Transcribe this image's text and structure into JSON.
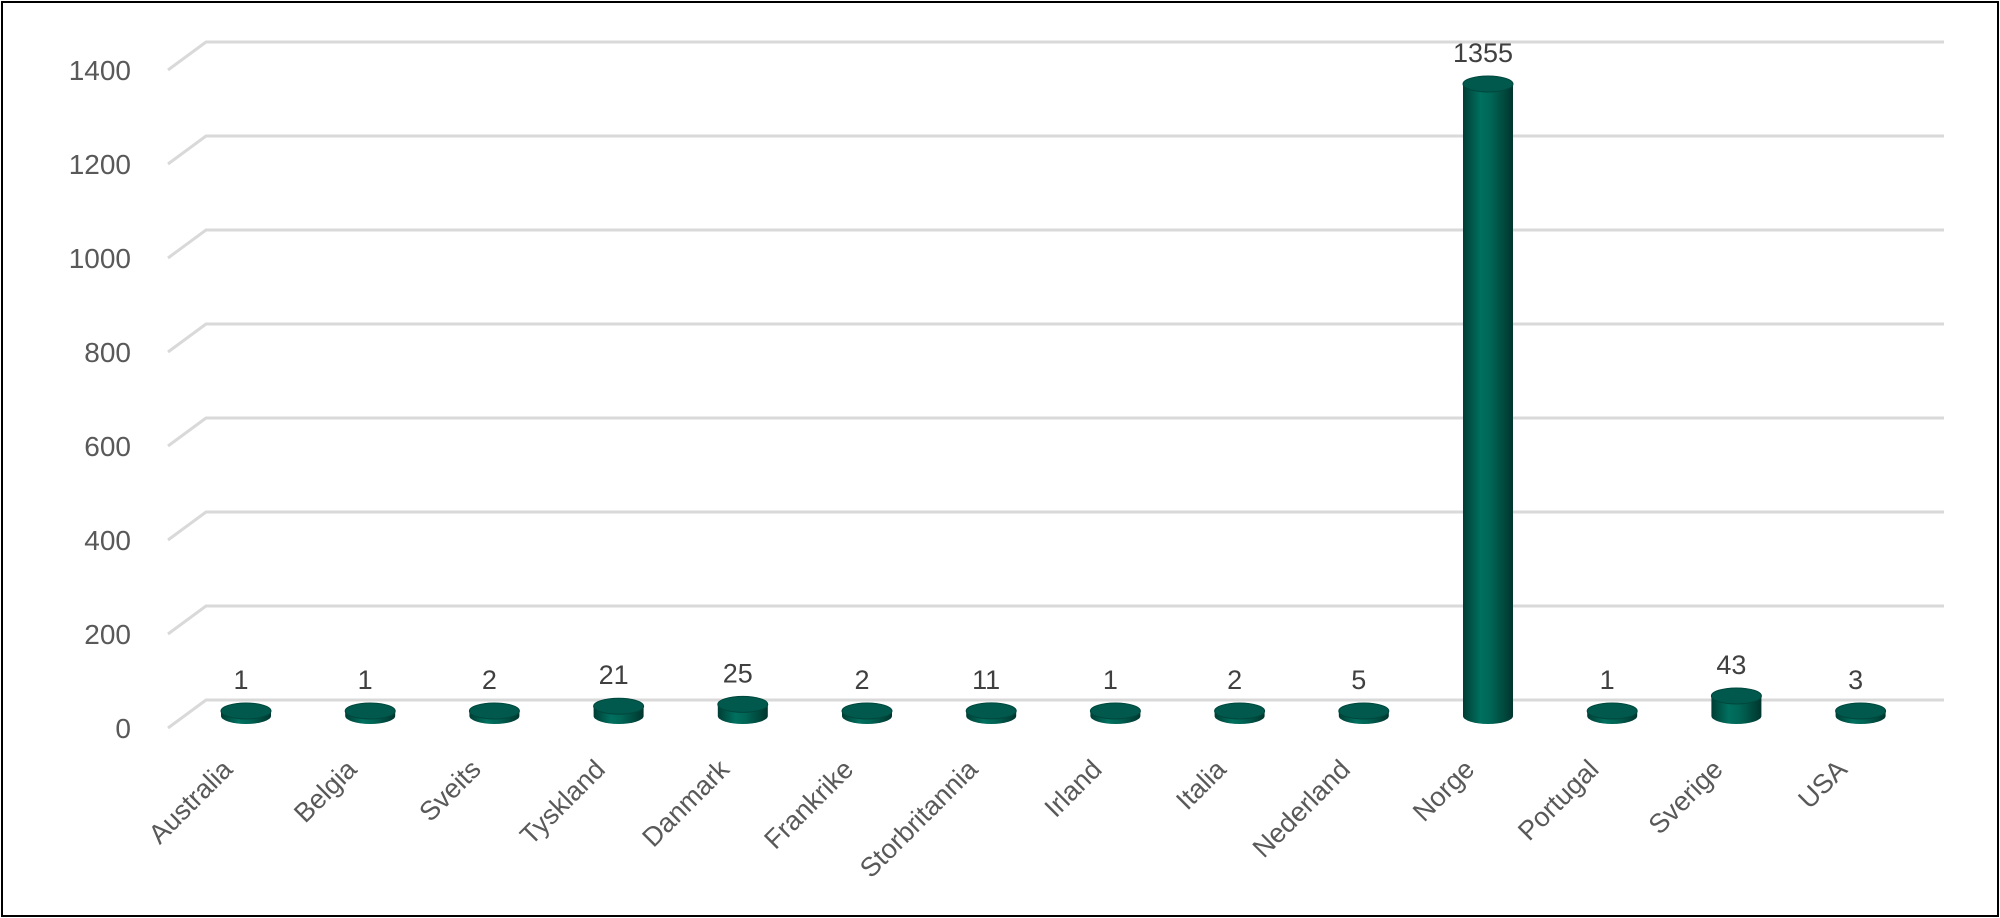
{
  "chart_data": {
    "type": "bar",
    "style": "3d-cylinder",
    "color": "#00594c",
    "categories": [
      "Australia",
      "Belgia",
      "Sveits",
      "Tyskland",
      "Danmark",
      "Frankrike",
      "Storbritannia",
      "Irland",
      "Italia",
      "Nederland",
      "Norge",
      "Portugal",
      "Sverige",
      "USA"
    ],
    "values": [
      1,
      1,
      2,
      21,
      25,
      2,
      11,
      1,
      2,
      5,
      1355,
      1,
      43,
      3
    ],
    "data_labels": [
      "1",
      "1",
      "2",
      "21",
      "25",
      "2",
      "11",
      "1",
      "2",
      "5",
      "1355",
      "1",
      "43",
      "3"
    ],
    "yticks": [
      "0",
      "200",
      "400",
      "600",
      "800",
      "1000",
      "1200",
      "1400"
    ],
    "ylim": [
      0,
      1400
    ],
    "grid": true,
    "legend": false,
    "title": "",
    "xlabel": "",
    "ylabel": ""
  }
}
